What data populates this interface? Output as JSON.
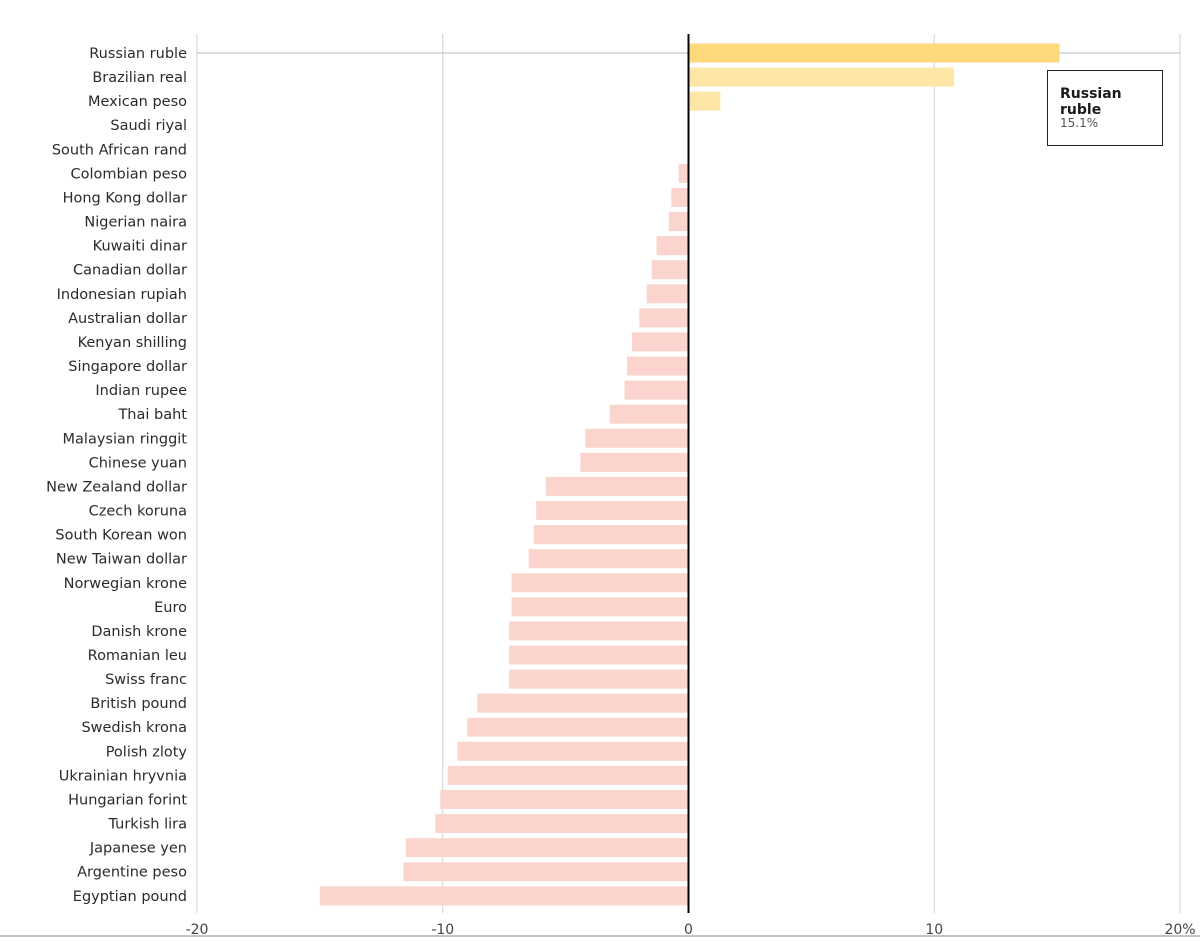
{
  "chart_data": {
    "type": "bar",
    "orientation": "horizontal",
    "title": "",
    "xlabel": "",
    "ylabel": "",
    "xlim": [
      -20,
      20
    ],
    "x_ticks": [
      "-20",
      "-10",
      "0",
      "10",
      "20%"
    ],
    "x_tick_values": [
      -20,
      -10,
      0,
      10,
      20
    ],
    "grid": true,
    "categories": [
      "Russian ruble",
      "Brazilian real",
      "Mexican peso",
      "Saudi riyal",
      "South African rand",
      "Colombian peso",
      "Hong Kong dollar",
      "Nigerian naira",
      "Kuwaiti dinar",
      "Canadian dollar",
      "Indonesian rupiah",
      "Australian dollar",
      "Kenyan shilling",
      "Singapore dollar",
      "Indian rupee",
      "Thai baht",
      "Malaysian ringgit",
      "Chinese yuan",
      "New Zealand dollar",
      "Czech koruna",
      "South Korean won",
      "New Taiwan dollar",
      "Norwegian krone",
      "Euro",
      "Danish krone",
      "Romanian leu",
      "Swiss franc",
      "British pound",
      "Swedish krona",
      "Polish zloty",
      "Ukrainian hryvnia",
      "Hungarian forint",
      "Turkish lira",
      "Japanese yen",
      "Argentine peso",
      "Egyptian pound"
    ],
    "values": [
      15.1,
      10.8,
      1.3,
      0.0,
      0.0,
      -0.4,
      -0.7,
      -0.8,
      -1.3,
      -1.5,
      -1.7,
      -2.0,
      -2.3,
      -2.5,
      -2.6,
      -3.2,
      -4.2,
      -4.4,
      -5.8,
      -6.2,
      -6.3,
      -6.5,
      -7.2,
      -7.2,
      -7.3,
      -7.3,
      -7.3,
      -8.6,
      -9.0,
      -9.4,
      -9.8,
      -10.1,
      -10.3,
      -11.5,
      -11.6,
      -15.0
    ],
    "colors": {
      "positive": "#fde6a6",
      "highlight": "#fdd97c",
      "negative": "#fbd5cd",
      "zero_line": "#000000",
      "grid": "#d0d0d0"
    },
    "highlighted": "Russian ruble",
    "tooltip": {
      "label": "Russian ruble",
      "value": "15.1%"
    }
  }
}
